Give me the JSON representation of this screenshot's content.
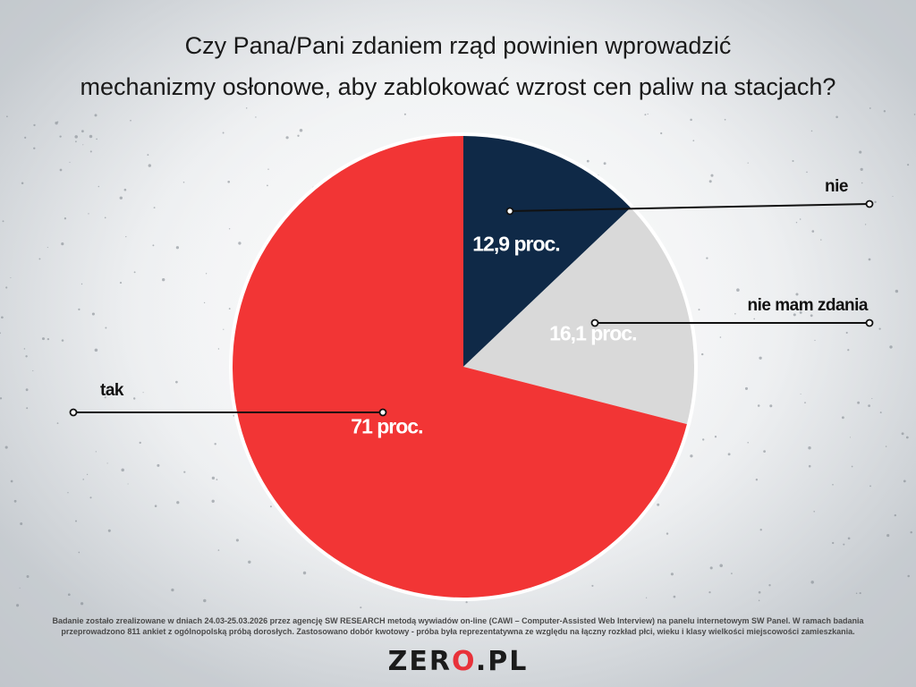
{
  "title": {
    "line1": "Czy Pana/Pani zdaniem rząd powinien wprowadzić",
    "line2": "mechanizmy osłonowe, aby zablokować wzrost cen paliw na stacjach?"
  },
  "chart_data": {
    "type": "pie",
    "title": "Czy Pana/Pani zdaniem rząd powinien wprowadzić mechanizmy osłonowe, aby zablokować wzrost cen paliw na stacjach?",
    "slices": [
      {
        "name": "nie",
        "value": 12.9,
        "label": "12,9 proc.",
        "color": "#0f2947",
        "label_color": "#ffffff"
      },
      {
        "name": "nie mam zdania",
        "value": 16.1,
        "label": "16,1 proc.",
        "color": "#d9d9d9",
        "label_color": "#ffffff"
      },
      {
        "name": "tak",
        "value": 71,
        "label": "71 proc.",
        "color": "#f23535",
        "label_color": "#ffffff"
      }
    ],
    "start": "top",
    "direction": "clockwise"
  },
  "footnote": {
    "line1": "Badanie zostało zrealizowane w dniach 24.03-25.03.2026 przez agencję SW RESEARCH metodą wywiadów on-line (CAWI – Computer-Assisted Web Interview) na panelu internetowym SW Panel. W ramach badania",
    "line2": "przeprowadzono 811 ankiet z ogólnopolską próbą dorosłych. Zastosowano dobór kwotowy - próba była reprezentatywna ze względu na łączny rozkład płci, wieku i klasy wielkości miejscowości zamieszkania."
  },
  "logo": {
    "part1": "ZER",
    "dot": "O",
    "part2": ".PL"
  }
}
